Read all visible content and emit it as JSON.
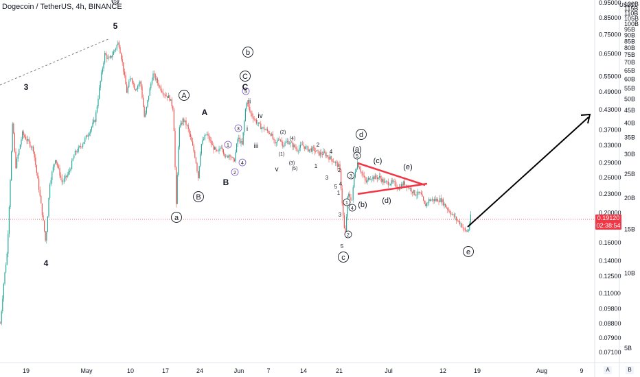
{
  "header": {
    "title": "Dogecoin / TetherUS, 4h, BINANCE"
  },
  "currency_label": "USDT",
  "price_badge": {
    "price": "0.19120",
    "timer": "02:38:54"
  },
  "buttons": {
    "a": "A",
    "b": "B"
  },
  "colors": {
    "up": "#26a69a",
    "down": "#ef5350",
    "accent_red": "#f23645",
    "line": "#000000",
    "elliott_purple": "#7e57c2",
    "label_red": "#f23645"
  },
  "chart_data": {
    "type": "candlestick",
    "title": "Dogecoin / TetherUS, 4h, BINANCE",
    "y_scale": "log",
    "ylim": [
      0.068,
      0.98
    ],
    "y_ticks": [
      "0.07100",
      "0.07900",
      "0.08800",
      "0.09800",
      "0.11000",
      "0.12500",
      "0.14000",
      "0.16000",
      "0.18000",
      "0.20000",
      "0.23000",
      "0.26000",
      "0.29000",
      "0.33000",
      "0.37000",
      "0.43000",
      "0.49000",
      "0.55000",
      "0.65000",
      "0.75000",
      "0.85000",
      "0.95000"
    ],
    "x_ticks": [
      "19",
      "May",
      "10",
      "17",
      "24",
      "Jun",
      "7",
      "14",
      "21",
      "Jul",
      "12",
      "19",
      "Aug",
      "9"
    ],
    "mcap_ticks": [
      "5B",
      "10B",
      "15B",
      "20B",
      "25B",
      "30B",
      "35B",
      "40B",
      "45B",
      "50B",
      "55B",
      "60B",
      "65B",
      "70B",
      "75B",
      "80B",
      "85B",
      "90B",
      "95B",
      "100B",
      "105B",
      "110B",
      "115B",
      "120B"
    ],
    "current_price": 0.1912,
    "price_path": [
      [
        0,
        0.088
      ],
      [
        5,
        0.12
      ],
      [
        10,
        0.15
      ],
      [
        18,
        0.4
      ],
      [
        22,
        0.28
      ],
      [
        32,
        0.36
      ],
      [
        40,
        0.34
      ],
      [
        48,
        0.32
      ],
      [
        56,
        0.24
      ],
      [
        62,
        0.19
      ],
      [
        66,
        0.16
      ],
      [
        72,
        0.25
      ],
      [
        80,
        0.3
      ],
      [
        90,
        0.25
      ],
      [
        100,
        0.27
      ],
      [
        108,
        0.31
      ],
      [
        118,
        0.33
      ],
      [
        128,
        0.36
      ],
      [
        138,
        0.4
      ],
      [
        145,
        0.52
      ],
      [
        152,
        0.65
      ],
      [
        158,
        0.62
      ],
      [
        165,
        0.66
      ],
      [
        172,
        0.71
      ],
      [
        178,
        0.6
      ],
      [
        184,
        0.49
      ],
      [
        190,
        0.55
      ],
      [
        196,
        0.5
      ],
      [
        204,
        0.53
      ],
      [
        210,
        0.4
      ],
      [
        216,
        0.48
      ],
      [
        222,
        0.56
      ],
      [
        228,
        0.53
      ],
      [
        234,
        0.5
      ],
      [
        240,
        0.48
      ],
      [
        246,
        0.47
      ],
      [
        252,
        0.43
      ],
      [
        256,
        0.21
      ],
      [
        260,
        0.37
      ],
      [
        266,
        0.4
      ],
      [
        272,
        0.38
      ],
      [
        278,
        0.34
      ],
      [
        284,
        0.3
      ],
      [
        288,
        0.26
      ],
      [
        292,
        0.33
      ],
      [
        300,
        0.36
      ],
      [
        308,
        0.33
      ],
      [
        316,
        0.31
      ],
      [
        322,
        0.33
      ],
      [
        328,
        0.3
      ],
      [
        334,
        0.31
      ],
      [
        340,
        0.29
      ],
      [
        346,
        0.35
      ],
      [
        352,
        0.33
      ],
      [
        358,
        0.46
      ],
      [
        364,
        0.42
      ],
      [
        370,
        0.4
      ],
      [
        378,
        0.38
      ],
      [
        386,
        0.37
      ],
      [
        394,
        0.36
      ],
      [
        400,
        0.33
      ],
      [
        406,
        0.35
      ],
      [
        412,
        0.33
      ],
      [
        418,
        0.34
      ],
      [
        426,
        0.33
      ],
      [
        432,
        0.32
      ],
      [
        440,
        0.33
      ],
      [
        448,
        0.32
      ],
      [
        456,
        0.32
      ],
      [
        464,
        0.31
      ],
      [
        472,
        0.31
      ],
      [
        480,
        0.3
      ],
      [
        488,
        0.29
      ],
      [
        494,
        0.28
      ],
      [
        498,
        0.21
      ],
      [
        502,
        0.165
      ],
      [
        506,
        0.23
      ],
      [
        512,
        0.22
      ],
      [
        516,
        0.27
      ],
      [
        520,
        0.29
      ],
      [
        526,
        0.27
      ],
      [
        532,
        0.25
      ],
      [
        538,
        0.26
      ],
      [
        546,
        0.26
      ],
      [
        552,
        0.26
      ],
      [
        560,
        0.25
      ],
      [
        566,
        0.25
      ],
      [
        572,
        0.25
      ],
      [
        580,
        0.24
      ],
      [
        588,
        0.25
      ],
      [
        596,
        0.24
      ],
      [
        604,
        0.23
      ],
      [
        612,
        0.23
      ],
      [
        618,
        0.21
      ],
      [
        624,
        0.22
      ],
      [
        630,
        0.22
      ],
      [
        636,
        0.22
      ],
      [
        642,
        0.22
      ],
      [
        648,
        0.21
      ],
      [
        656,
        0.2
      ],
      [
        664,
        0.19
      ],
      [
        670,
        0.185
      ],
      [
        676,
        0.175
      ],
      [
        681,
        0.174
      ],
      [
        685,
        0.195
      ]
    ],
    "annotations": [
      {
        "text": "3",
        "kind": "plain",
        "x": 38,
        "y": 127,
        "color": "#131722"
      },
      {
        "text": "4",
        "kind": "plain",
        "x": 67,
        "y": 384,
        "color": "#131722"
      },
      {
        "text": "5",
        "kind": "plain",
        "x": 168,
        "y": 38,
        "color": "#131722"
      },
      {
        "text": "A",
        "kind": "circle",
        "x": 268,
        "y": 139,
        "color": "#131722"
      },
      {
        "text": "a",
        "kind": "circle",
        "x": 257,
        "y": 317,
        "color": "#131722"
      },
      {
        "text": "B",
        "kind": "circle",
        "x": 289,
        "y": 287,
        "color": "#131722"
      },
      {
        "text": "A",
        "kind": "plain",
        "x": 298,
        "y": 164,
        "color": "#f23645"
      },
      {
        "text": "B",
        "kind": "plain",
        "x": 329,
        "y": 266,
        "color": "#f23645"
      },
      {
        "text": "1",
        "kind": "small-circle",
        "x": 332,
        "y": 211,
        "color": "#7e57c2"
      },
      {
        "text": "2",
        "kind": "small-circle",
        "x": 342,
        "y": 251,
        "color": "#7e57c2"
      },
      {
        "text": "3",
        "kind": "small-circle",
        "x": 347,
        "y": 187,
        "color": "#7e57c2"
      },
      {
        "text": "4",
        "kind": "small-circle",
        "x": 353,
        "y": 237,
        "color": "#7e57c2"
      },
      {
        "text": "5",
        "kind": "small-circle",
        "x": 358,
        "y": 133,
        "color": "#7e57c2"
      },
      {
        "text": "b",
        "kind": "circle",
        "x": 361,
        "y": 76,
        "color": "#131722"
      },
      {
        "text": "C",
        "kind": "circle",
        "x": 357,
        "y": 111,
        "color": "#131722"
      },
      {
        "text": "C",
        "kind": "plain",
        "x": 357,
        "y": 127,
        "color": "#f23645"
      },
      {
        "text": "ii",
        "kind": "plain",
        "x": 363,
        "y": 147,
        "color": "#131722"
      },
      {
        "text": "i",
        "kind": "plain",
        "x": 360,
        "y": 187,
        "color": "#131722"
      },
      {
        "text": "iv",
        "kind": "plain",
        "x": 379,
        "y": 168,
        "color": "#131722"
      },
      {
        "text": "iii",
        "kind": "plain",
        "x": 373,
        "y": 212,
        "color": "#131722"
      },
      {
        "text": "v",
        "kind": "plain",
        "x": 403,
        "y": 246,
        "color": "#131722"
      },
      {
        "text": "(2)",
        "kind": "plain",
        "x": 412,
        "y": 191,
        "color": "#131722"
      },
      {
        "text": "(4)",
        "kind": "plain",
        "x": 426,
        "y": 200,
        "color": "#131722"
      },
      {
        "text": "(1)",
        "kind": "plain",
        "x": 410,
        "y": 223,
        "color": "#131722"
      },
      {
        "text": "(3)",
        "kind": "plain",
        "x": 425,
        "y": 236,
        "color": "#131722"
      },
      {
        "text": "(5)",
        "kind": "plain",
        "x": 429,
        "y": 244,
        "color": "#131722"
      },
      {
        "text": "2",
        "kind": "plain",
        "x": 463,
        "y": 210,
        "color": "#131722"
      },
      {
        "text": "4",
        "kind": "plain",
        "x": 482,
        "y": 220,
        "color": "#131722"
      },
      {
        "text": "1",
        "kind": "plain",
        "x": 460,
        "y": 241,
        "color": "#131722"
      },
      {
        "text": "3",
        "kind": "plain",
        "x": 476,
        "y": 258,
        "color": "#131722"
      },
      {
        "text": "2",
        "kind": "plain",
        "x": 494,
        "y": 247,
        "color": "#131722"
      },
      {
        "text": "5",
        "kind": "plain",
        "x": 489,
        "y": 271,
        "color": "#131722"
      },
      {
        "text": "4",
        "kind": "plain",
        "x": 496,
        "y": 267,
        "color": "#131722"
      },
      {
        "text": "1",
        "kind": "plain",
        "x": 493,
        "y": 280,
        "color": "#131722"
      },
      {
        "text": "3",
        "kind": "plain",
        "x": 495,
        "y": 312,
        "color": "#131722"
      },
      {
        "text": "5",
        "kind": "plain",
        "x": 498,
        "y": 358,
        "color": "#131722"
      },
      {
        "text": "c",
        "kind": "circle",
        "x": 500,
        "y": 375,
        "color": "#131722"
      },
      {
        "text": "d",
        "kind": "circle",
        "x": 526,
        "y": 196,
        "color": "#131722"
      },
      {
        "text": "(a)",
        "kind": "plain",
        "x": 520,
        "y": 217,
        "color": "#131722"
      },
      {
        "text": "5",
        "kind": "small-circle",
        "x": 520,
        "y": 227,
        "color": "#131722"
      },
      {
        "text": "3",
        "kind": "small-circle",
        "x": 511,
        "y": 256,
        "color": "#131722"
      },
      {
        "text": "1",
        "kind": "small-circle",
        "x": 505,
        "y": 295,
        "color": "#131722"
      },
      {
        "text": "4",
        "kind": "small-circle",
        "x": 513,
        "y": 303,
        "color": "#131722"
      },
      {
        "text": "2",
        "kind": "small-circle",
        "x": 507,
        "y": 342,
        "color": "#131722"
      },
      {
        "text": "(b)",
        "kind": "plain",
        "x": 528,
        "y": 298,
        "color": "#131722"
      },
      {
        "text": "(c)",
        "kind": "plain",
        "x": 550,
        "y": 234,
        "color": "#131722"
      },
      {
        "text": "(d)",
        "kind": "plain",
        "x": 563,
        "y": 292,
        "color": "#131722"
      },
      {
        "text": "(e)",
        "kind": "plain",
        "x": 594,
        "y": 243,
        "color": "#131722"
      },
      {
        "text": "e",
        "kind": "circle",
        "x": 682,
        "y": 367,
        "color": "#131722"
      },
      {
        "text": "(5)",
        "kind": "small-circle",
        "x": 168,
        "y": 1,
        "color": "#131722"
      }
    ]
  }
}
